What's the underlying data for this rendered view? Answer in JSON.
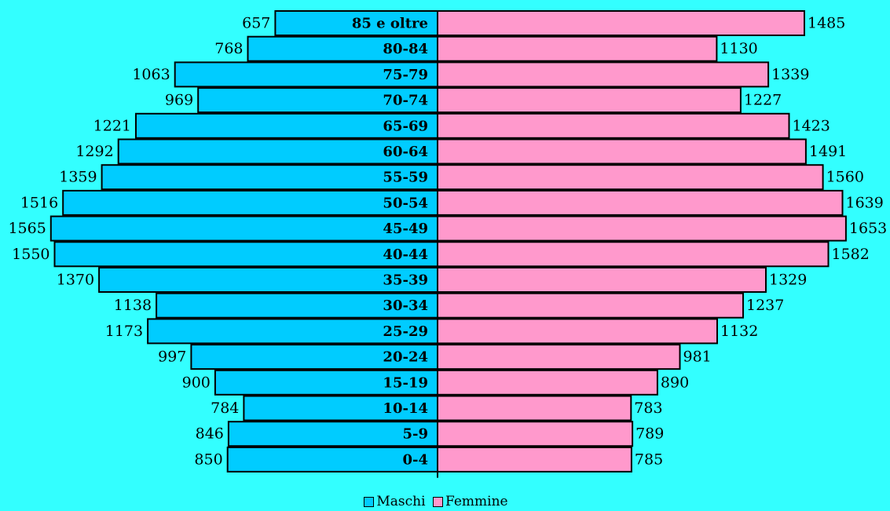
{
  "colors": {
    "background": "#33FFFF",
    "maschi": "#00CCFF",
    "femmine": "#FF99CC"
  },
  "chart_data": {
    "type": "bar",
    "orientation": "horizontal",
    "layout": "population-pyramid",
    "categories": [
      "85 e oltre",
      "80-84",
      "75-79",
      "70-74",
      "65-69",
      "60-64",
      "55-59",
      "50-54",
      "45-49",
      "40-44",
      "35-39",
      "30-34",
      "25-29",
      "20-24",
      "15-19",
      "10-14",
      "5-9",
      "0-4"
    ],
    "series": [
      {
        "name": "Maschi",
        "values": [
          657,
          768,
          1063,
          969,
          1221,
          1292,
          1359,
          1516,
          1565,
          1550,
          1370,
          1138,
          1173,
          997,
          900,
          784,
          846,
          850
        ]
      },
      {
        "name": "Femmine",
        "values": [
          1485,
          1130,
          1339,
          1227,
          1423,
          1491,
          1560,
          1639,
          1653,
          1582,
          1329,
          1237,
          1132,
          981,
          890,
          783,
          789,
          785
        ]
      }
    ],
    "legend_position": "bottom",
    "grid": false
  }
}
